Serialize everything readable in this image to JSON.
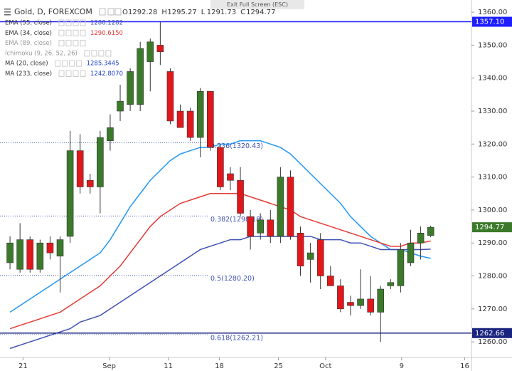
{
  "chart_data": {
    "type": "candlestick",
    "title": "Gold, D, FOREXCOM",
    "fullscreen_hint": "Exit Full Screen (ESC)",
    "ohlc_header": [
      {
        "key": "O",
        "value": 1292.28
      },
      {
        "key": "H",
        "value": 1295.27
      },
      {
        "key": "L",
        "value": 1291.73
      },
      {
        "key": "C",
        "value": 1294.77
      }
    ],
    "indicators": [
      {
        "name": "EMA (55, close)",
        "value": "1288.1282",
        "color": "#3f51b5"
      },
      {
        "name": "EMA (34, close)",
        "value": "1290.6150",
        "color": "#e53935"
      },
      {
        "name": "EMA (89, close)",
        "value": null,
        "color": "#999999"
      },
      {
        "name": "Ichimoku (9, 26, 52, 26)",
        "value": null,
        "color": "#999999"
      },
      {
        "name": "MA (20, close)",
        "value": "1285.3445",
        "color": "#1e40d0"
      },
      {
        "name": "MA (233, close)",
        "value": "1242.8070",
        "color": "#1e40d0"
      }
    ],
    "colors": {
      "up": "#3b7a2a",
      "down": "#e3171b"
    },
    "open": [
      1284,
      1282,
      1291,
      1282,
      1290,
      1286,
      1292,
      1318,
      1309,
      1307,
      1321,
      1330,
      1332,
      1332,
      1345,
      1350,
      1342,
      1330,
      1330,
      1322,
      1336,
      1319,
      1311,
      1309,
      1298,
      1293,
      1297,
      1292,
      1310,
      1293,
      1285,
      1291,
      1280,
      1277,
      1272,
      1271,
      1273,
      1269,
      1277,
      1277,
      1284,
      1290,
      1292.28
    ],
    "high": [
      1292,
      1296,
      1292,
      1291,
      1292,
      1292,
      1324,
      1323,
      1311,
      1324,
      1329,
      1338,
      1343,
      1351,
      1352,
      1357,
      1343,
      1332,
      1331,
      1337,
      1336,
      1320,
      1313,
      1313,
      1300,
      1299,
      1300,
      1313,
      1312,
      1295,
      1290,
      1293,
      1283,
      1279,
      1274,
      1282,
      1280,
      1277,
      1279,
      1290,
      1294,
      1295,
      1295.27
    ],
    "low": [
      1282,
      1281,
      1281,
      1281,
      1285,
      1275,
      1290,
      1305,
      1305,
      1299,
      1318,
      1327,
      1330,
      1330,
      1336,
      1344,
      1326,
      1325,
      1321,
      1316,
      1318,
      1306,
      1306,
      1298,
      1288,
      1291,
      1290,
      1290,
      1291,
      1280,
      1278,
      1276,
      1277,
      1269,
      1268,
      1270,
      1268,
      1260,
      1276,
      1275,
      1283,
      1285,
      1291.73
    ],
    "close": [
      1290,
      1291,
      1282,
      1290,
      1287,
      1291,
      1318,
      1307,
      1307,
      1322,
      1325,
      1333,
      1342,
      1349,
      1351,
      1348,
      1327,
      1325,
      1322,
      1336,
      1319,
      1307,
      1309,
      1299,
      1292,
      1297,
      1292,
      1310,
      1292,
      1283,
      1287,
      1280,
      1277,
      1270,
      1271,
      1273,
      1269,
      1276,
      1278,
      1288,
      1290,
      1293,
      1294.77
    ],
    "series": [
      {
        "name": "MA (20, close)",
        "color": "#2196f3",
        "values": [
          1269,
          1271,
          1273,
          1275,
          1277,
          1279,
          1281,
          1283,
          1285,
          1287,
          1291,
          1296,
          1301,
          1305,
          1309,
          1312,
          1315,
          1317,
          1318,
          1319,
          1319,
          1320,
          1320,
          1321,
          1321,
          1321,
          1320,
          1319,
          1317,
          1314,
          1311,
          1308,
          1305,
          1302,
          1298,
          1295,
          1292,
          1290,
          1288,
          1288,
          1287,
          1286,
          1285.3445
        ]
      },
      {
        "name": "EMA (34, close)",
        "color": "#e53935",
        "values": [
          1264,
          1265,
          1266,
          1267,
          1268,
          1269,
          1271,
          1273,
          1275,
          1277,
          1280,
          1283,
          1287,
          1291,
          1295,
          1298,
          1300,
          1302,
          1303,
          1304,
          1305,
          1305,
          1305,
          1305,
          1304,
          1303,
          1302,
          1301,
          1300,
          1298,
          1297,
          1296,
          1295,
          1294,
          1293,
          1292,
          1291,
          1290,
          1289,
          1289,
          1290,
          1290,
          1290.615
        ]
      },
      {
        "name": "EMA (55, close)",
        "color": "#3f51b5",
        "values": [
          1258,
          1259,
          1260,
          1261,
          1262,
          1263,
          1264,
          1266,
          1267,
          1268,
          1270,
          1272,
          1274,
          1276,
          1278,
          1280,
          1282,
          1284,
          1286,
          1288,
          1289,
          1290,
          1291,
          1291,
          1292,
          1292,
          1292,
          1292,
          1292,
          1292,
          1292,
          1291,
          1291,
          1291,
          1290,
          1290,
          1289,
          1288,
          1288,
          1288,
          1288,
          1288,
          1288.1282
        ]
      }
    ],
    "hlines": [
      {
        "value": 1357.1,
        "label": "1357.10",
        "color": "#1e1eff"
      },
      {
        "value": 1262.66,
        "label": "1262.66",
        "color": "#1a237e"
      }
    ],
    "fib_levels": [
      {
        "value": 1320.43,
        "label": "0.236(1320.43)"
      },
      {
        "value": 1298.18,
        "label": "0.382(1298.18)"
      },
      {
        "value": 1280.2,
        "label": "0.5(1280.20)"
      },
      {
        "value": 1262.21,
        "label": "0.618(1262.21)"
      }
    ],
    "last_price": {
      "value": 1294.77,
      "label": "1294.77",
      "color": "#3b7a2a"
    },
    "xlim": [
      -1,
      46
    ],
    "xticks": [
      {
        "value": 1.3,
        "label": "21"
      },
      {
        "value": 9.9,
        "label": "Sep"
      },
      {
        "value": 15.8,
        "label": "11"
      },
      {
        "value": 20.9,
        "label": "18"
      },
      {
        "value": 26.8,
        "label": "25"
      },
      {
        "value": 31.5,
        "label": "Oct"
      },
      {
        "value": 39.1,
        "label": "9"
      },
      {
        "value": 45.4,
        "label": "16"
      }
    ],
    "ylim": [
      1255.7,
      1363.7
    ],
    "yticks": [
      {
        "value": 1260,
        "label": "1260.00"
      },
      {
        "value": 1270,
        "label": "1270.00"
      },
      {
        "value": 1280,
        "label": "1280.00"
      },
      {
        "value": 1290,
        "label": "1290.00"
      },
      {
        "value": 1300,
        "label": "1300.00"
      },
      {
        "value": 1310,
        "label": "1310.00"
      },
      {
        "value": 1320,
        "label": "1320.00"
      },
      {
        "value": 1330,
        "label": "1330.00"
      },
      {
        "value": 1340,
        "label": "1340.00"
      },
      {
        "value": 1350,
        "label": "1350.00"
      },
      {
        "value": 1360,
        "label": "1360.00"
      }
    ],
    "grid": false
  }
}
